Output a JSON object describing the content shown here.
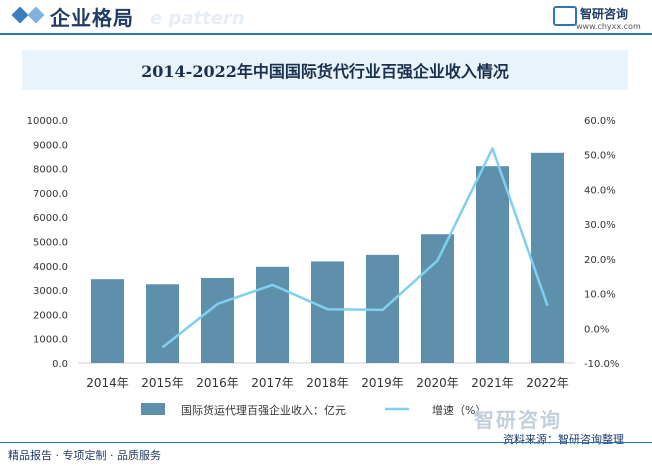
{
  "header": {
    "section_title": "企业格局",
    "ghost_text": "e pattern",
    "logo_name": "智研咨询",
    "logo_url": "www.chyxx.com"
  },
  "watermark_logo": "智研咨询",
  "footer": {
    "left": "精品报告 · 专项定制 · 品质服务",
    "source": "资料来源：智研咨询整理"
  },
  "colors": {
    "bar": "#5f90ab",
    "line": "#7fd0f0",
    "axis_text": "#333333",
    "title_bg": "#e8f3fb"
  },
  "chart_data": {
    "type": "bar",
    "title": "2014-2022年中国国际货代行业百强企业收入情况",
    "categories": [
      "2014年",
      "2015年",
      "2016年",
      "2017年",
      "2018年",
      "2019年",
      "2020年",
      "2021年",
      "2022年"
    ],
    "series": [
      {
        "name": "国际货运代理百强企业收入：亿元",
        "type": "bar",
        "axis": "left",
        "values": [
          3450,
          3240,
          3500,
          3960,
          4180,
          4450,
          5300,
          8100,
          8650
        ]
      },
      {
        "name": "增速（%）",
        "type": "line",
        "axis": "right",
        "values": [
          null,
          -5.5,
          7.0,
          12.5,
          5.5,
          5.3,
          19.5,
          51.8,
          6.5
        ]
      }
    ],
    "y_left": {
      "ylim": [
        0,
        10000
      ],
      "ticks": [
        "0.0",
        "1000.0",
        "2000.0",
        "3000.0",
        "4000.0",
        "5000.0",
        "6000.0",
        "7000.0",
        "8000.0",
        "9000.0",
        "10000.0"
      ]
    },
    "y_right": {
      "ylim": [
        -10,
        60
      ],
      "ticks": [
        "-10.0%",
        "0.0%",
        "10.0%",
        "20.0%",
        "30.0%",
        "40.0%",
        "50.0%",
        "60.0%"
      ]
    },
    "grid": false,
    "legend": "bottom"
  }
}
